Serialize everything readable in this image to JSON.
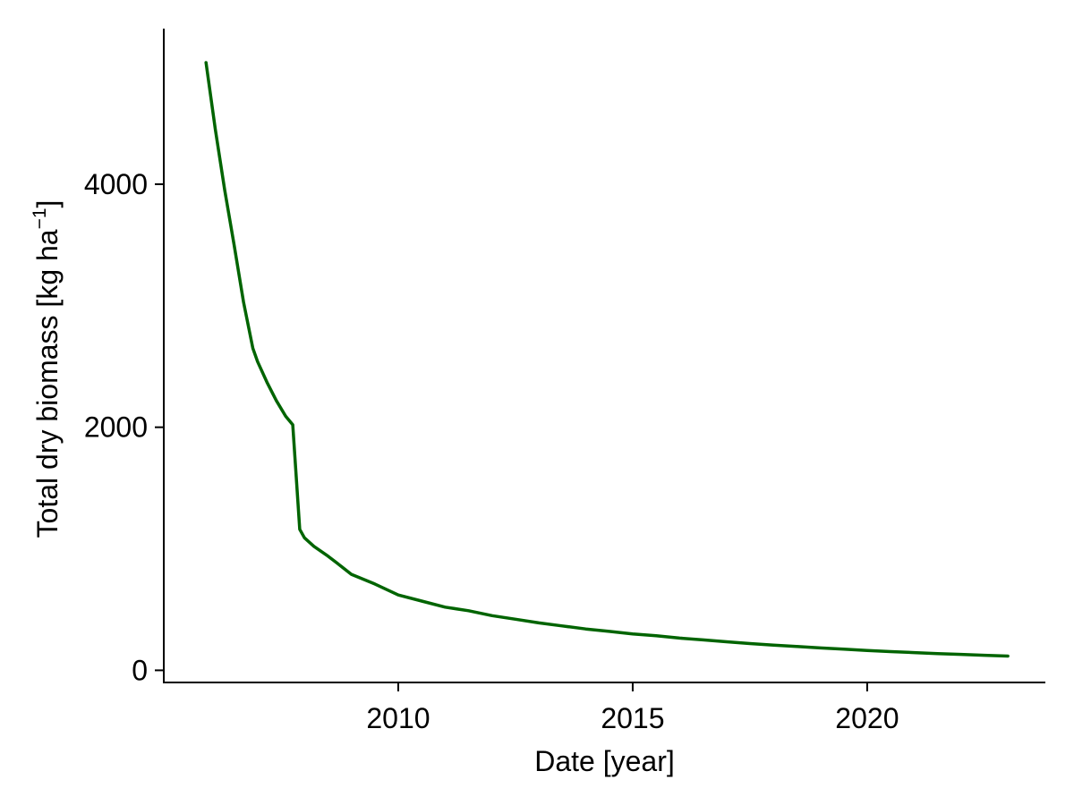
{
  "chart_data": {
    "type": "line",
    "title": "",
    "xlabel": "Date [year]",
    "ylabel": {
      "main": "Total dry biomass [kg ha",
      "superscript": "−1",
      "close": "]"
    },
    "xlim": [
      2005.0,
      2023.8
    ],
    "ylim": [
      -100,
      5280
    ],
    "x_ticks": [
      2010,
      2015,
      2020
    ],
    "y_ticks": [
      0,
      2000,
      4000
    ],
    "grid": false,
    "line_color": "#006400",
    "series": [
      {
        "x": [
          2005.9,
          2006.1,
          2006.3,
          2006.5,
          2006.7,
          2006.9,
          2007.0,
          2007.2,
          2007.4,
          2007.6,
          2007.75,
          2007.9,
          2008.0,
          2008.2,
          2008.5,
          2008.7,
          2009.0,
          2009.5,
          2010.0,
          2010.5,
          2011.0,
          2011.5,
          2012.0,
          2012.5,
          2013.0,
          2013.5,
          2014.0,
          2014.5,
          2015.0,
          2015.5,
          2016.0,
          2016.5,
          2017.0,
          2017.5,
          2018.0,
          2018.5,
          2019.0,
          2019.5,
          2020.0,
          2020.5,
          2021.0,
          2021.5,
          2022.0,
          2022.5,
          2023.0
        ],
        "y": [
          5000,
          4450,
          3950,
          3500,
          3030,
          2650,
          2540,
          2370,
          2220,
          2090,
          2020,
          1160,
          1090,
          1020,
          940,
          880,
          790,
          710,
          620,
          570,
          520,
          490,
          450,
          420,
          390,
          365,
          340,
          320,
          300,
          285,
          265,
          250,
          235,
          220,
          208,
          196,
          184,
          174,
          163,
          154,
          146,
          138,
          131,
          124,
          117
        ]
      }
    ]
  }
}
